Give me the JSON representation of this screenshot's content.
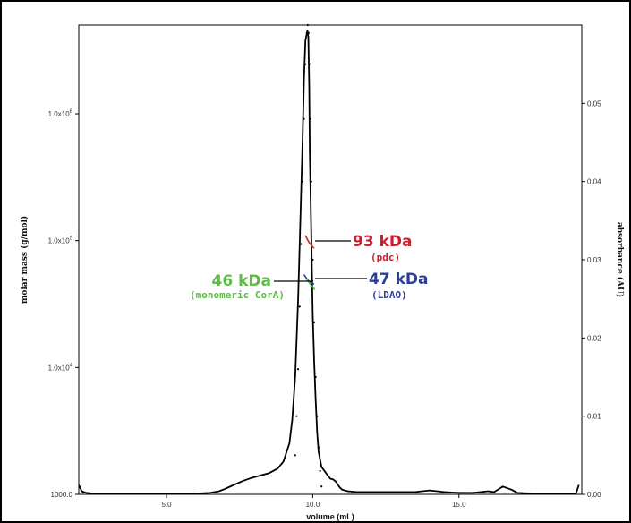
{
  "chart_data": {
    "type": "scatter",
    "title": "",
    "xlabel": "volume (mL)",
    "ylabel_left": "molar mass (g/mol)",
    "ylabel_right": "absorbance (AU)",
    "xlim": [
      2.0,
      19.2
    ],
    "x_ticks": [
      {
        "value": 5.0,
        "label": "5.0"
      },
      {
        "value": 10.0,
        "label": "10.0"
      },
      {
        "value": 15.0,
        "label": "15.0"
      }
    ],
    "y_left": {
      "scale": "log",
      "lim": [
        1000,
        5000000
      ],
      "ticks": [
        {
          "value": 1000,
          "mant": "1000.0",
          "exp": ""
        },
        {
          "value": 10000,
          "mant": "1.0x10",
          "exp": "4"
        },
        {
          "value": 100000,
          "mant": "1.0x10",
          "exp": "5"
        },
        {
          "value": 1000000,
          "mant": "1.0x10",
          "exp": "6"
        }
      ]
    },
    "y_right": {
      "scale": "linear",
      "lim": [
        0.0,
        0.06
      ],
      "ticks": [
        {
          "value": 0.0,
          "label": "0.00"
        },
        {
          "value": 0.01,
          "label": "0.01"
        },
        {
          "value": 0.02,
          "label": "0.02"
        },
        {
          "value": 0.03,
          "label": "0.03"
        },
        {
          "value": 0.04,
          "label": "0.04"
        },
        {
          "value": 0.05,
          "label": "0.05"
        }
      ]
    },
    "series": [
      {
        "role": "absorbance trace (solid)",
        "color": "#000000",
        "x": [
          2.0,
          2.1,
          2.25,
          2.5,
          3.0,
          3.5,
          4.0,
          4.5,
          5.0,
          5.5,
          6.0,
          6.5,
          6.8,
          7.0,
          7.3,
          7.6,
          7.9,
          8.2,
          8.5,
          8.8,
          9.0,
          9.2,
          9.3,
          9.4,
          9.5,
          9.6,
          9.65,
          9.7,
          9.75,
          9.8,
          9.82,
          9.85,
          9.88,
          9.9,
          9.95,
          10.0,
          10.05,
          10.1,
          10.15,
          10.2,
          10.3,
          10.4,
          10.5,
          10.6,
          10.7,
          10.8,
          10.9,
          11.0,
          11.2,
          11.5,
          12.0,
          13.0,
          13.5,
          14.0,
          14.5,
          15.0,
          15.5,
          16.0,
          16.2,
          16.5,
          16.8,
          17.0,
          17.5,
          18.0,
          18.5,
          19.0,
          19.1
        ],
        "y": [
          0.0012,
          0.0004,
          0.0002,
          0.0001,
          0.0001,
          0.0001,
          0.0001,
          0.0001,
          0.0001,
          0.0001,
          0.0001,
          0.0002,
          0.0004,
          0.0007,
          0.0012,
          0.0017,
          0.0021,
          0.0024,
          0.0027,
          0.0033,
          0.0042,
          0.0065,
          0.0095,
          0.015,
          0.025,
          0.038,
          0.045,
          0.053,
          0.058,
          0.059,
          0.0593,
          0.0585,
          0.052,
          0.044,
          0.033,
          0.023,
          0.017,
          0.012,
          0.008,
          0.0055,
          0.0035,
          0.003,
          0.0025,
          0.002,
          0.0019,
          0.0016,
          0.001,
          0.0006,
          0.0004,
          0.0003,
          0.0003,
          0.0003,
          0.0003,
          0.0005,
          0.0003,
          0.0002,
          0.0002,
          0.0004,
          0.0003,
          0.001,
          0.0006,
          0.0002,
          0.0001,
          0.0001,
          0.0001,
          0.0001,
          0.0012
        ]
      },
      {
        "role": "peak dots (light scattering)",
        "color": "#000000",
        "x": [
          9.4,
          9.45,
          9.5,
          9.55,
          9.6,
          9.65,
          9.7,
          9.75,
          9.8,
          9.83,
          9.86,
          9.89,
          9.92,
          9.95,
          10.0,
          10.05,
          10.1,
          10.15,
          10.2,
          10.25,
          10.3
        ],
        "y": [
          0.005,
          0.01,
          0.016,
          0.024,
          0.032,
          0.04,
          0.048,
          0.055,
          0.059,
          0.06,
          0.059,
          0.055,
          0.048,
          0.04,
          0.03,
          0.022,
          0.015,
          0.01,
          0.006,
          0.003,
          0.001
        ]
      },
      {
        "role": "molar mass fit",
        "color": "#cc1f2e",
        "axis": "left",
        "x": [
          9.75,
          9.8,
          9.85,
          9.9,
          9.95,
          10.0,
          10.05
        ],
        "y": [
          110000,
          104000,
          99000,
          95000,
          92000,
          89000,
          87000
        ]
      },
      {
        "role": "molar mass fit",
        "color": "#2d3f95",
        "axis": "left",
        "x": [
          9.7,
          9.75,
          9.8,
          9.85,
          9.9,
          9.95,
          10.0,
          10.05
        ],
        "y": [
          54000,
          52000,
          50000,
          48500,
          47000,
          46500,
          46000,
          45500
        ]
      },
      {
        "role": "molar mass fit",
        "color": "#5dbb46",
        "axis": "left",
        "x": [
          9.78,
          9.84,
          9.9,
          9.96,
          10.02,
          10.08
        ],
        "y": [
          50000,
          48000,
          46000,
          44000,
          42500,
          41000
        ]
      }
    ],
    "annotations": [
      {
        "text": "93 kDa",
        "sub": "(pdc)",
        "color": "#cc1f2e"
      },
      {
        "text": "47 kDa",
        "sub": "(LDAO)",
        "color": "#2d3f95"
      },
      {
        "text": "46 kDa",
        "sub": "(monomeric CorA)",
        "color": "#5dbb46"
      }
    ]
  }
}
